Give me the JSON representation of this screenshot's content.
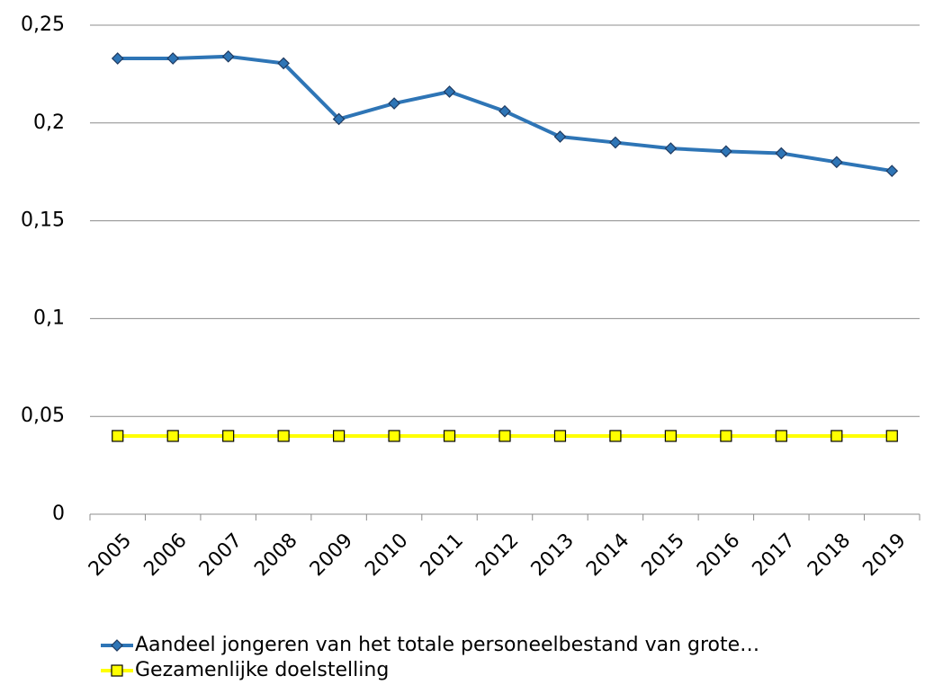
{
  "chart_data": {
    "type": "line",
    "categories": [
      "2005",
      "2006",
      "2007",
      "2008",
      "2009",
      "2010",
      "2011",
      "2012",
      "2013",
      "2014",
      "2015",
      "2016",
      "2017",
      "2018",
      "2019"
    ],
    "series": [
      {
        "name": "Aandeel jongeren van het totale personeelbestand van grote…",
        "color": "#2e75b6",
        "marker": "diamond",
        "values": [
          0.233,
          0.233,
          0.234,
          0.2305,
          0.202,
          0.21,
          0.216,
          0.206,
          0.193,
          0.19,
          0.187,
          0.1855,
          0.1845,
          0.18,
          0.1755
        ]
      },
      {
        "name": "Gezamenlijke doelstelling",
        "color": "#ffff00",
        "marker": "square",
        "values": [
          0.04,
          0.04,
          0.04,
          0.04,
          0.04,
          0.04,
          0.04,
          0.04,
          0.04,
          0.04,
          0.04,
          0.04,
          0.04,
          0.04,
          0.04
        ]
      }
    ],
    "ylim": [
      0,
      0.25
    ],
    "yticks": [
      0,
      {
        "value": 0.05,
        "label": "0,05"
      },
      {
        "value": 0.1,
        "label": "0,1"
      },
      {
        "value": 0.15,
        "label": "0,15"
      },
      {
        "value": 0.2,
        "label": "0,2"
      },
      {
        "value": 0.25,
        "label": "0,25"
      }
    ],
    "grid": true
  }
}
